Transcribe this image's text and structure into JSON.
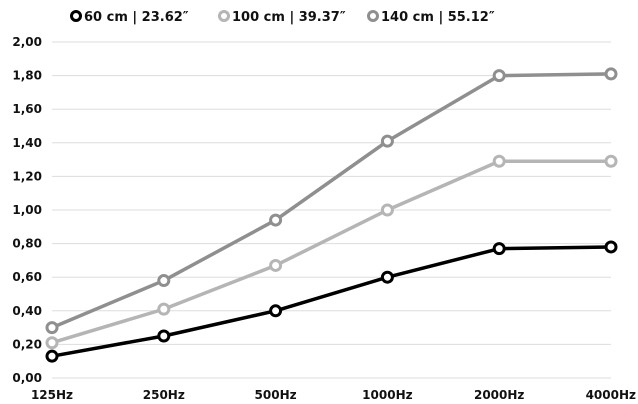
{
  "chart_data": {
    "type": "line",
    "title": "",
    "xlabel": "",
    "ylabel": "",
    "categories": [
      "125Hz",
      "250Hz",
      "500Hz",
      "1000Hz",
      "2000Hz",
      "4000Hz"
    ],
    "ylim": [
      0,
      2
    ],
    "yticks": [
      "0,00",
      "0,20",
      "0,40",
      "0,60",
      "0,80",
      "1,00",
      "1,20",
      "1,40",
      "1,60",
      "1,80",
      "2,00"
    ],
    "grid": true,
    "legend_position": "top",
    "series": [
      {
        "name": "60 cm | 23.62″",
        "color": "#000000",
        "values": [
          0.13,
          0.25,
          0.4,
          0.6,
          0.77,
          0.78
        ]
      },
      {
        "name": "100 cm | 39.37″",
        "color": "#b5b5b5",
        "values": [
          0.21,
          0.41,
          0.67,
          1.0,
          1.29,
          1.29
        ]
      },
      {
        "name": "140 cm | 55.12″",
        "color": "#8f8f8f",
        "values": [
          0.3,
          0.58,
          0.94,
          1.41,
          1.8,
          1.81
        ]
      }
    ]
  }
}
